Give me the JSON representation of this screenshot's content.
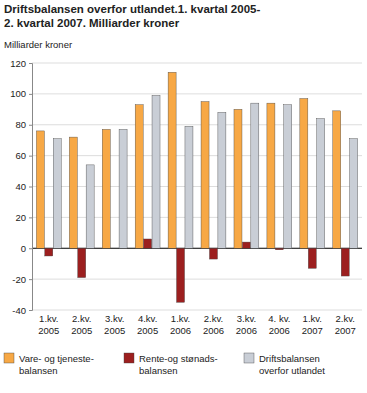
{
  "chart_data": {
    "type": "bar",
    "title": "Driftsbalansen overfor utlandet.1. kvartal 2005-\n2. kvartal 2007. Milliarder kroner",
    "y_label": "Milliarder kroner",
    "categories": [
      "1.kv.\n2005",
      "2.kv.\n2005",
      "3.kv.\n2005",
      "4.kv.\n2005",
      "1.kv.\n2006",
      "2.kv.\n2006",
      "3.kv.\n2006",
      "4. kv.\n2006",
      "1.kv.\n2007",
      "2.kv.\n2007"
    ],
    "series": [
      {
        "name": "Vare- og tjeneste-\nbalansen",
        "color": "#f7a845",
        "values": [
          76,
          72,
          77,
          93,
          114,
          95,
          90,
          94,
          97,
          89
        ]
      },
      {
        "name": "Rente-og stønads-\nbalansen",
        "color": "#9c1f1f",
        "values": [
          -5,
          -19,
          0,
          6,
          -35,
          -7,
          4,
          -1,
          -13,
          -18
        ]
      },
      {
        "name": "Driftsbalansen\noverfor utlandet",
        "color": "#c9ced6",
        "values": [
          71,
          54,
          77,
          99,
          79,
          88,
          94,
          93,
          84,
          71
        ]
      }
    ],
    "ylim": [
      -40,
      120
    ],
    "yticks": [
      -40,
      -20,
      0,
      20,
      40,
      60,
      80,
      100,
      120
    ],
    "grid": true,
    "legend": "bottom"
  }
}
